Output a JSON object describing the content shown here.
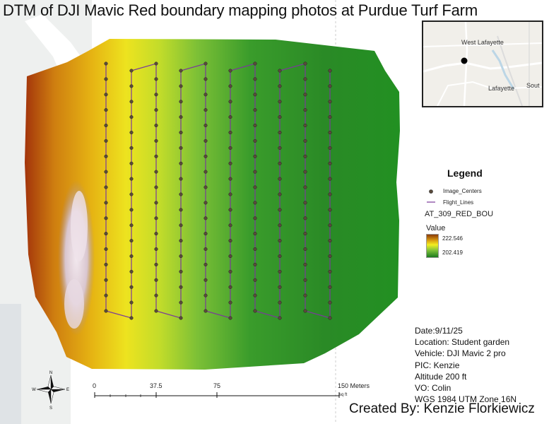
{
  "title": "DTM of DJI Mavic Red boundary mapping photos at Purdue Turf Farm",
  "inset_map": {
    "labels": [
      "West Lafayette",
      "Lafayette",
      "Sout"
    ]
  },
  "legend": {
    "title": "Legend",
    "image_centers": "Image_Centers",
    "flight_lines": "Flight_Lines",
    "layer_name": "AT_309_RED_BOU",
    "value_label": "Value",
    "max_value": "222.546",
    "min_value": "202.419",
    "colors": {
      "high": "#8a3a0a",
      "mid": "#f3ee20",
      "low": "#1c7a1f",
      "flight_line": "#7a3a9a",
      "image_center": "#5a4a3a"
    }
  },
  "info": {
    "date": "Date:9/11/25",
    "location": "Location: Student garden",
    "vehicle": "Vehicle: DJI Mavic 2 pro",
    "pic": "PIC: Kenzie",
    "altitude": "Altitude 200 ft",
    "vo": "VO: Colin",
    "crs": "WGS 1984 UTM Zone 16N"
  },
  "credit": "Created By: Kenzie Florkiewicz",
  "scale_bar": {
    "labels": [
      "0",
      "37.5",
      "75",
      "150 Meters"
    ],
    "sub_label": "sq ft"
  },
  "north_arrow": {
    "n": "N",
    "s": "S",
    "e": "E",
    "w": "W"
  },
  "flight_plan": {
    "lines": 10,
    "points_per_line": 17
  }
}
